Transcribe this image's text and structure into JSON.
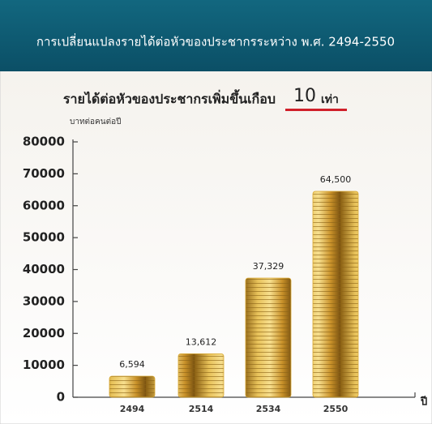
{
  "chart_data": {
    "type": "bar",
    "title": "การเปลี่ยนแปลงรายได้ต่อหัวของประชากรระหว่าง พ.ศ. 2494-2550",
    "subtitle": "รายได้ต่อหัวของประชากรเพิ่มขึ้นเกือบ",
    "highlight": "10",
    "highlight_unit": "เท่า",
    "y_label": "บาทต่อคนต่อปี",
    "x_label": "ปี",
    "categories": [
      "2494",
      "2514",
      "2534",
      "2550"
    ],
    "values": [
      6594,
      13612,
      37329,
      64500
    ],
    "value_labels": [
      "6,594",
      "13,612",
      "37,329",
      "64,500"
    ],
    "color": "#d9a934",
    "ylim": [
      0,
      80000
    ],
    "yticks": [
      0,
      10000,
      20000,
      30000,
      40000,
      50000,
      60000,
      70000,
      80000
    ]
  }
}
